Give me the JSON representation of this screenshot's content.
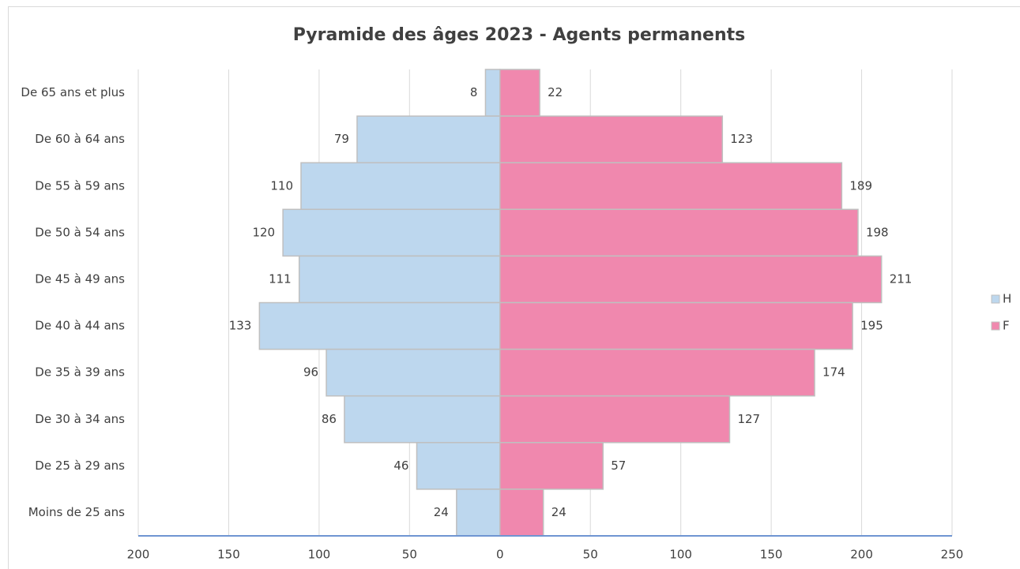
{
  "chart_data": {
    "type": "pyramid",
    "title": "Pyramide des âges 2023 - Agents permanents",
    "categories": [
      "De 65 ans et plus",
      "De 60 à 64 ans",
      "De 55 à 59 ans",
      "De 50 à 54 ans",
      "De 45 à 49 ans",
      "De 40 à 44 ans",
      "De 35 à 39 ans",
      "De 30 à 34 ans",
      "De 25 à 29 ans",
      "Moins de 25 ans"
    ],
    "series": [
      {
        "name": "H",
        "color": "#bdd7ee",
        "values": [
          -8,
          -79,
          -110,
          -120,
          -111,
          -133,
          -96,
          -86,
          -46,
          -24
        ],
        "value_labels": [
          "8",
          "79",
          "110",
          "120",
          "111",
          "133",
          "96",
          "86",
          "46",
          "24"
        ]
      },
      {
        "name": "F",
        "color": "#f088ae",
        "values": [
          22,
          123,
          189,
          198,
          211,
          195,
          174,
          127,
          57,
          24
        ]
      }
    ],
    "xlim": [
      -200,
      250
    ],
    "xticks": [
      {
        "value": -200,
        "label": "200"
      },
      {
        "value": -150,
        "label": "150"
      },
      {
        "value": -100,
        "label": "100"
      },
      {
        "value": -50,
        "label": "50"
      },
      0,
      50,
      100,
      150,
      200,
      250
    ],
    "grid": true,
    "legend": "right"
  }
}
